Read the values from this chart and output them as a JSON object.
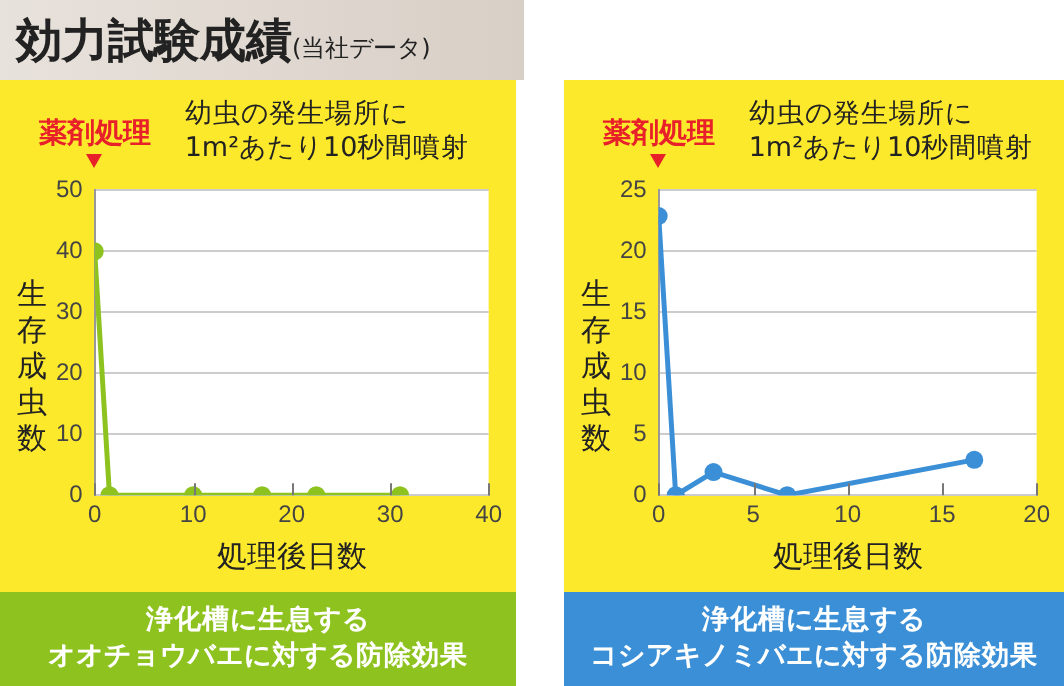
{
  "chart_data": [
    {
      "type": "line",
      "title": "効力試験成績",
      "subtitle": "(当社データ)",
      "xlabel": "処理後日数",
      "ylabel": "生存成虫数",
      "annotations": [
        "薬剤処理",
        "幼虫の発生場所に\n1m²あたり10秒間噴射",
        "浄化槽に生息する",
        "オオチョウバエに対する防除効果"
      ],
      "series": [
        {
          "color": "#8dc21f",
          "x": [
            0,
            1.5,
            10,
            17,
            22.5,
            31
          ],
          "values": [
            40,
            0,
            0,
            0,
            0,
            0
          ]
        }
      ],
      "xlim": [
        0,
        40
      ],
      "xticks": [
        0,
        10,
        20,
        30,
        40
      ],
      "ylim": [
        0,
        50
      ],
      "yticks": [
        0,
        10,
        20,
        30,
        40,
        50
      ],
      "grid": "y",
      "legend": false,
      "marker": "circle"
    },
    {
      "type": "line",
      "xlabel": "処理後日数",
      "ylabel": "生存成虫数",
      "annotations": [
        "薬剤処理",
        "幼虫の発生場所に\n1m²あたり10秒間噴射",
        "浄化槽に生息する",
        "コシアキノミバエに対する防除効果"
      ],
      "series": [
        {
          "color": "#3a8fd6",
          "x": [
            0,
            0.9,
            2.9,
            6.8,
            16.7
          ],
          "values": [
            22.9,
            0,
            1.9,
            0,
            2.9
          ]
        }
      ],
      "xlim": [
        0,
        20
      ],
      "xticks": [
        0,
        5,
        10,
        15,
        20
      ],
      "ylim": [
        0,
        25
      ],
      "yticks": [
        0,
        5,
        10,
        15,
        20,
        25
      ],
      "grid": "y",
      "legend": false,
      "marker": "circle"
    }
  ]
}
